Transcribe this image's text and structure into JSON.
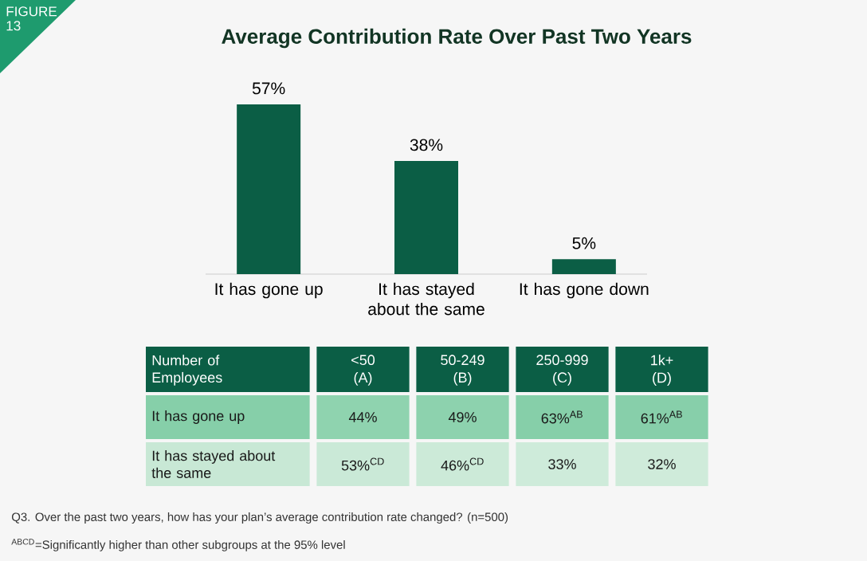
{
  "chart_data": [
    {
      "type": "bar",
      "title": "Average Contribution Rate Over Past Two Years",
      "categories": [
        "It has gone up",
        "It has stayed about the same",
        "It has gone down"
      ],
      "values": [
        57,
        38,
        5
      ],
      "value_labels": [
        "57%",
        "38%",
        "5%"
      ],
      "color": "#0b5e45",
      "annotations": [
        "FIGURE 13",
        "Q3. Over the past two years, how has your plan’s average contribution rate changed? (n=500)"
      ]
    },
    {
      "type": "heatmap",
      "xlabel": "Number of Employees",
      "categories": [
        "<50 (A)",
        "50-249 (B)",
        "250-999 (C)",
        "1k+ (D)"
      ],
      "y_categories": [
        "It has gone up",
        "It has stayed about the same"
      ],
      "cells": [
        [
          44,
          49,
          63,
          61
        ],
        [
          53,
          46,
          33,
          32
        ]
      ],
      "cell_labels": [
        [
          "44%",
          "49%",
          "63%$^{AB}$",
          "61%$^{AB}$"
        ],
        [
          "53%$^{CD}$",
          "46%$^{CD}$",
          "33%",
          "32%"
        ]
      ],
      "annotations": [
        "$^{ABCD}$=Significantly higher than other subgroups at the 95% level"
      ]
    }
  ]
}
